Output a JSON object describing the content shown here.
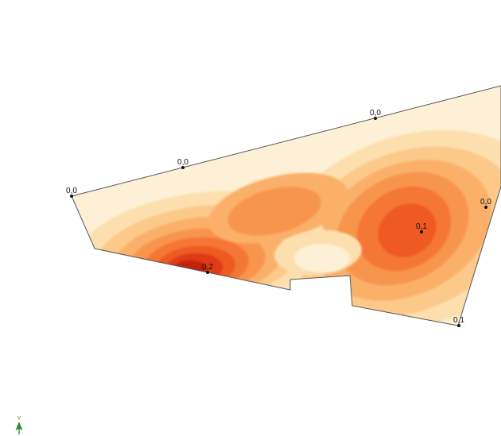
{
  "colors": {
    "band_0": "#FEF0D6",
    "band_1": "#FDDFAE",
    "band_2": "#FCC98A",
    "band_3": "#FBB06A",
    "band_4": "#F8954E",
    "band_5": "#F57735",
    "band_6": "#EE5A22",
    "band_7": "#DE3A12",
    "band_8": "#C42408",
    "outline": "#555555",
    "axis": "#2e8b2e"
  },
  "points": [
    {
      "label": "0,0"
    },
    {
      "label": "0,0"
    },
    {
      "label": "0,0"
    },
    {
      "label": "0,0"
    },
    {
      "label": "0,1"
    },
    {
      "label": "0,2"
    },
    {
      "label": "0,1"
    }
  ],
  "axis_indicator": {
    "label": "Y",
    "icon": "north-arrow-icon"
  }
}
